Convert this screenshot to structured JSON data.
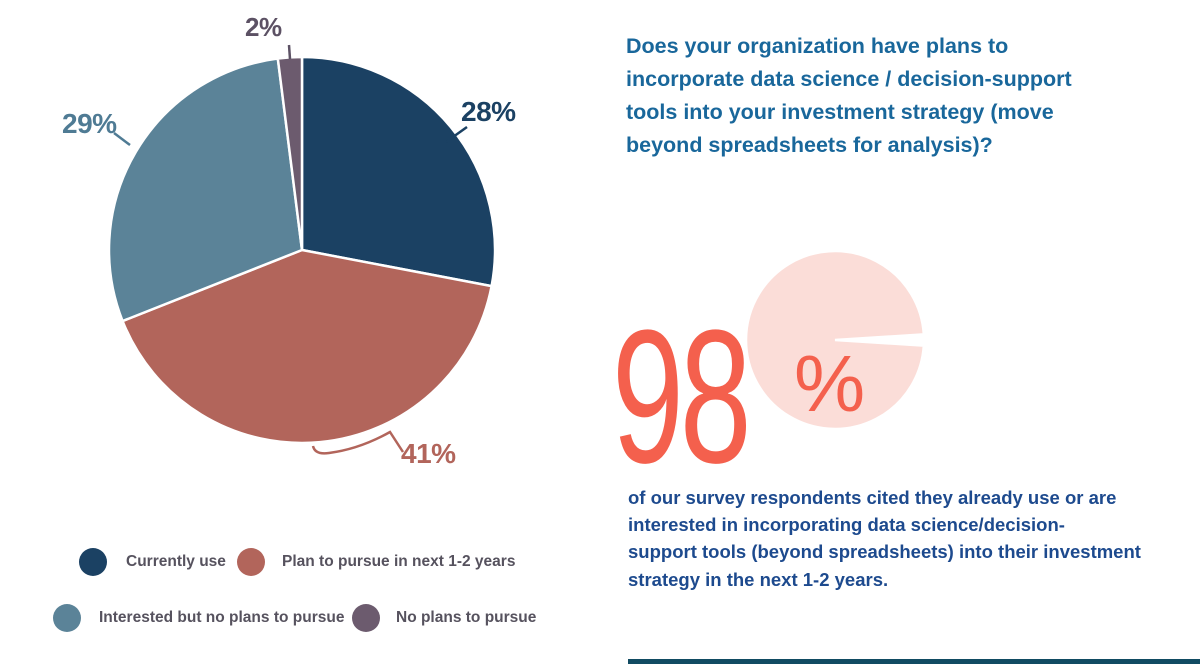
{
  "chart_data": [
    {
      "type": "pie",
      "title": "",
      "start_angle": "top",
      "direction": "clockwise",
      "legend_position": "bottom",
      "slices": [
        {
          "label": "Currently use",
          "value": 28,
          "display": "28%",
          "color": "#1B4163",
          "label_color": "#1B4163"
        },
        {
          "label": "Plan to pursue in next 1-2 years",
          "value": 41,
          "display": "41%",
          "color": "#B2655B",
          "label_color": "#B2655B"
        },
        {
          "label": "Interested but no plans to pursue",
          "value": 29,
          "display": "29%",
          "color": "#5B8398",
          "label_color": "#4F7B94"
        },
        {
          "label": "No plans to pursue",
          "value": 2,
          "display": "2%",
          "color": "#6C5B6E",
          "label_color": "#5C5164"
        }
      ]
    },
    {
      "type": "pie",
      "role": "stat-highlight",
      "start_angle_deg": -3.6,
      "slices": [
        {
          "label": "gap",
          "value": 2,
          "color": "#FFFFFF"
        },
        {
          "label": "highlight",
          "value": 98,
          "color": "#FBDDD8"
        }
      ]
    }
  ],
  "right": {
    "heading_lines": [
      "Does your organization have plans to",
      "incorporate data science / decision-support",
      "tools into your investment strategy (move",
      "beyond spreadsheets for analysis)?"
    ],
    "stat": {
      "value": "98",
      "suffix": "%"
    },
    "paragraph_lines": [
      "of our survey respondents cited they already use or are",
      "interested in incorporating data science/decision-",
      "support tools (beyond spreadsheets) into their investment",
      "strategy in the next 1-2 years."
    ]
  },
  "colors": {
    "background": "#FFFFFF",
    "heading_blue": "#19679B",
    "paragraph_blue": "#1D4A8E",
    "stat_coral": "#F4604D",
    "stat_pink": "#FBDDD8",
    "legend_text": "#56525E",
    "footer_rule": "#114B62"
  }
}
